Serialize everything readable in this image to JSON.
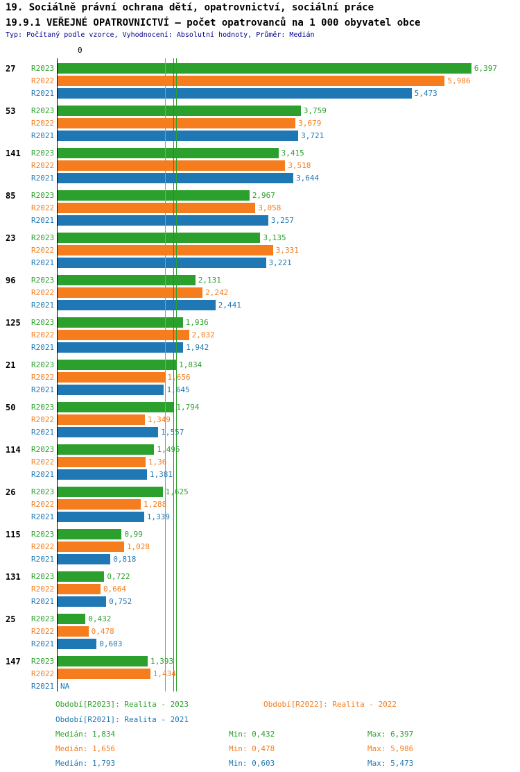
{
  "chart_data": {
    "type": "bar",
    "orientation": "horizontal",
    "title": "19. Sociálně právní ochrana dětí, opatrovnictví, sociální práce",
    "subtitle": "19.9.1 VEŘEJNÉ OPATROVNICTVÍ – počet opatrovanců na 1 000 obyvatel obce",
    "note": "Typ: Počítaný podle vzorce, Vyhodnocení: Absolutní hodnoty, Průměr: Medián",
    "xlim": [
      0,
      7
    ],
    "x_tick_labels": [
      "0"
    ],
    "grid": false,
    "series": [
      "R2023",
      "R2022",
      "R2021"
    ],
    "colors": {
      "R2023": "#2ca02c",
      "R2022": "#f57d1e",
      "R2021": "#1f77b4",
      "axis": "#000000",
      "note_text": "#00008b"
    },
    "groups": [
      {
        "label": "27",
        "values": [
          6.397,
          5.986,
          5.473
        ],
        "labels": [
          "6,397",
          "5,986",
          "5,473"
        ]
      },
      {
        "label": "53",
        "values": [
          3.759,
          3.679,
          3.721
        ],
        "labels": [
          "3,759",
          "3,679",
          "3,721"
        ]
      },
      {
        "label": "141",
        "values": [
          3.415,
          3.518,
          3.644
        ],
        "labels": [
          "3,415",
          "3,518",
          "3,644"
        ]
      },
      {
        "label": "85",
        "values": [
          2.967,
          3.058,
          3.257
        ],
        "labels": [
          "2,967",
          "3,058",
          "3,257"
        ]
      },
      {
        "label": "23",
        "values": [
          3.135,
          3.331,
          3.221
        ],
        "labels": [
          "3,135",
          "3,331",
          "3,221"
        ]
      },
      {
        "label": "96",
        "values": [
          2.131,
          2.242,
          2.441
        ],
        "labels": [
          "2,131",
          "2,242",
          "2,441"
        ]
      },
      {
        "label": "125",
        "values": [
          1.936,
          2.032,
          1.942
        ],
        "labels": [
          "1,936",
          "2,032",
          "1,942"
        ]
      },
      {
        "label": "21",
        "values": [
          1.834,
          1.656,
          1.645
        ],
        "labels": [
          "1,834",
          "1,656",
          "1,645"
        ]
      },
      {
        "label": "50",
        "values": [
          1.794,
          1.349,
          1.557
        ],
        "labels": [
          "1,794",
          "1,349",
          "1,557"
        ]
      },
      {
        "label": "114",
        "values": [
          1.495,
          1.36,
          1.381
        ],
        "labels": [
          "1,495",
          "1,36",
          "1,381"
        ]
      },
      {
        "label": "26",
        "values": [
          1.625,
          1.288,
          1.339
        ],
        "labels": [
          "1,625",
          "1,288",
          "1,339"
        ]
      },
      {
        "label": "115",
        "values": [
          0.99,
          1.028,
          0.818
        ],
        "labels": [
          "0,99",
          "1,028",
          "0,818"
        ]
      },
      {
        "label": "131",
        "values": [
          0.722,
          0.664,
          0.752
        ],
        "labels": [
          "0,722",
          "0,664",
          "0,752"
        ]
      },
      {
        "label": "25",
        "values": [
          0.432,
          0.478,
          0.603
        ],
        "labels": [
          "0,432",
          "0,478",
          "0,603"
        ]
      },
      {
        "label": "147",
        "values": [
          1.393,
          1.434,
          null
        ],
        "labels": [
          "1,393",
          "1,434",
          "NA"
        ]
      }
    ],
    "medians": [
      {
        "series": "R2023",
        "value": 1.834
      },
      {
        "series": "R2022",
        "value": 1.656
      },
      {
        "series": "R2021",
        "value": 1.793
      }
    ]
  },
  "legend": {
    "periods": [
      {
        "series": "R2023",
        "label": "Období[R2023]: Realita - 2023"
      },
      {
        "series": "R2022",
        "label": "Období[R2022]: Realita - 2022"
      },
      {
        "series": "R2021",
        "label": "Období[R2021]: Realita - 2021"
      }
    ],
    "stats": [
      {
        "series": "R2023",
        "median": "Medián: 1,834",
        "min": "Min: 0,432",
        "max": "Max: 6,397"
      },
      {
        "series": "R2022",
        "median": "Medián: 1,656",
        "min": "Min: 0,478",
        "max": "Max: 5,986"
      },
      {
        "series": "R2021",
        "median": "Medián: 1,793",
        "min": "Min: 0,603",
        "max": "Max: 5,473"
      }
    ]
  }
}
